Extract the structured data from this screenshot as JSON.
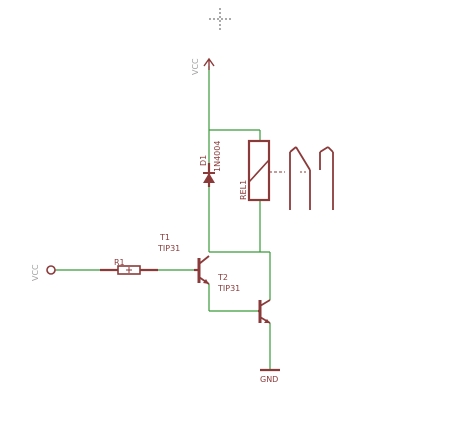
{
  "labels": {
    "vcc_top": "VCC",
    "vcc_left": "VCC",
    "r1": "R1",
    "d1": "D1",
    "d1_value": "1N4004",
    "rel1": "REL1",
    "t1": "T1",
    "t1_value": "TIP31",
    "t2": "T2",
    "t2_value": "TIP31",
    "gnd": "GND"
  }
}
